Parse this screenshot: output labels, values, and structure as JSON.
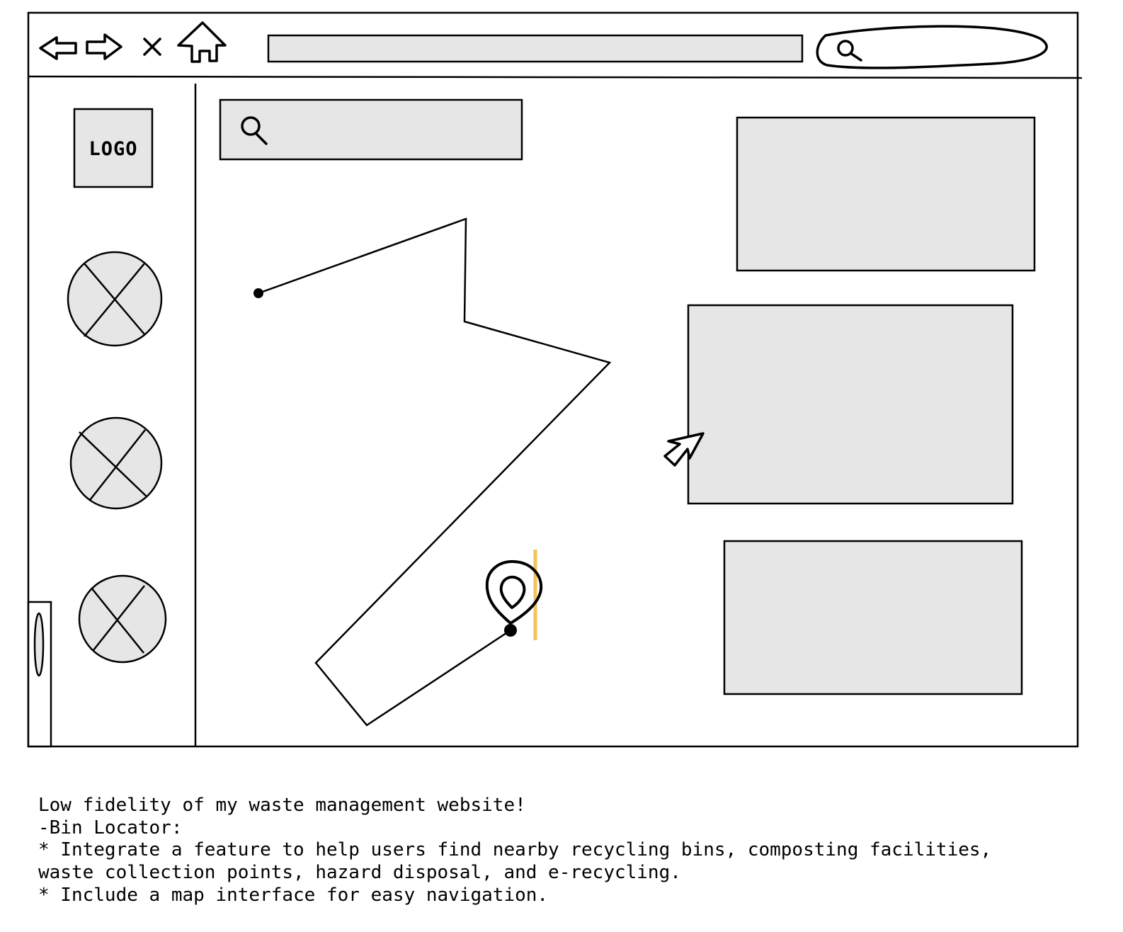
{
  "sidebar": {
    "logo_text": "LOGO",
    "placeholders": [
      "placeholder-1",
      "placeholder-2",
      "placeholder-3"
    ]
  },
  "colors": {
    "fill": "#e6e6e6",
    "stroke": "#000000",
    "highlight": "#f2c45a"
  },
  "icons": [
    "back-arrow-icon",
    "forward-arrow-icon",
    "close-icon",
    "home-icon",
    "search-icon",
    "map-pin-icon",
    "cursor-icon"
  ],
  "description": {
    "lines": [
      "Low fidelity of my waste management website!",
      "-Bin Locator:",
      "* Integrate a feature to help users find nearby recycling bins, composting facilities,",
      "waste collection points, hazard disposal, and e-recycling.",
      "* Include a map interface for easy navigation."
    ]
  }
}
